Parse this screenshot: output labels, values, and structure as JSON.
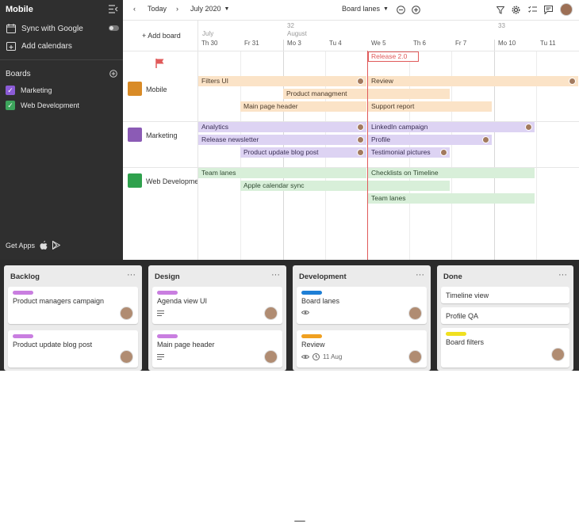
{
  "sidebar": {
    "title": "Mobile",
    "sync_label": "Sync with Google",
    "add_calendars_label": "Add calendars",
    "boards_heading": "Boards",
    "boards": [
      {
        "name": "Marketing",
        "color": "#8b5bd6"
      },
      {
        "name": "Web Development",
        "color": "#3da55c"
      }
    ],
    "get_apps_label": "Get Apps"
  },
  "topbar": {
    "today_label": "Today",
    "month_label": "July 2020",
    "view_label": "Board lanes"
  },
  "timeline": {
    "add_board_label": "+ Add board",
    "weeks": [
      "32",
      "33"
    ],
    "months": [
      "July",
      "August"
    ],
    "days": [
      "Th 30",
      "Fr 31",
      "Mo 3",
      "Tu 4",
      "We 5",
      "Th 6",
      "Fr 7",
      "Mo 10",
      "Tu 11"
    ],
    "release_label": "Release 2.0",
    "lanes": [
      {
        "name": "Mobile",
        "color": "#d98b27"
      },
      {
        "name": "Marketing",
        "color": "#8b5bb5"
      },
      {
        "name": "Web Development",
        "color": "#2fa14d"
      }
    ],
    "bars": [
      {
        "label": "Filters UI"
      },
      {
        "label": "Review"
      },
      {
        "label": "Product managment"
      },
      {
        "label": "Main page header"
      },
      {
        "label": "Support report"
      },
      {
        "label": "Analytics"
      },
      {
        "label": "LinkedIn campaign"
      },
      {
        "label": "Release newsletter"
      },
      {
        "label": "Profile"
      },
      {
        "label": "Product update blog post"
      },
      {
        "label": "Testimonial pictures"
      },
      {
        "label": "Team lanes"
      },
      {
        "label": "Checklists on Timeline"
      },
      {
        "label": "Apple calendar sync"
      },
      {
        "label": "Team lanes"
      }
    ]
  },
  "kanban": {
    "columns": [
      {
        "title": "Backlog",
        "cards": [
          {
            "label": "Product managers campaign",
            "tag": "#c97ee0"
          },
          {
            "label": "Product update blog post",
            "tag": "#c97ee0"
          }
        ]
      },
      {
        "title": "Design",
        "cards": [
          {
            "label": "Agenda view UI",
            "tag": "#c97ee0"
          },
          {
            "label": "Main page header",
            "tag": "#c97ee0"
          }
        ]
      },
      {
        "title": "Development",
        "cards": [
          {
            "label": "Board lanes",
            "tag": "#1e7fd6"
          },
          {
            "label": "Review",
            "tag": "#f0a020",
            "date": "11 Aug"
          }
        ]
      },
      {
        "title": "Done",
        "cards": [
          {
            "label": "Timeline view"
          },
          {
            "label": "Profile QA"
          },
          {
            "label": "Board filters",
            "tag": "#f0e020"
          }
        ]
      }
    ]
  }
}
